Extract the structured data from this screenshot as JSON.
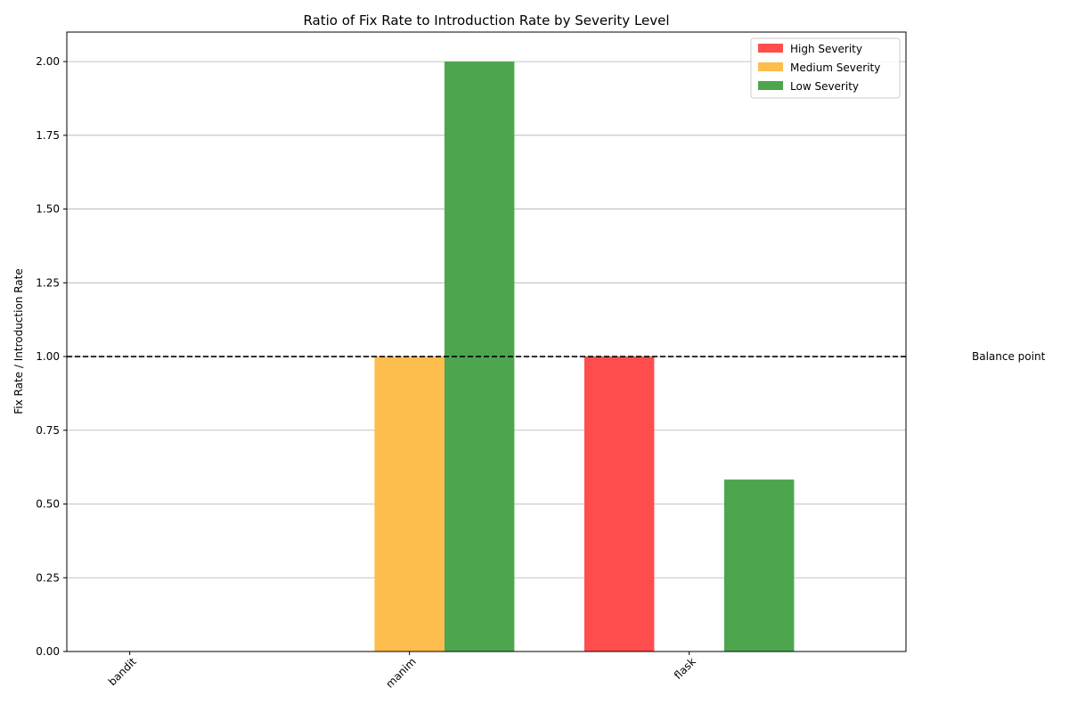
{
  "chart_data": {
    "type": "bar",
    "title": "Ratio of Fix Rate to Introduction Rate by Severity Level",
    "xlabel": "",
    "ylabel": "Fix Rate / Introduction Rate",
    "categories": [
      "bandit",
      "manim",
      "flask"
    ],
    "series": [
      {
        "name": "High Severity",
        "color": "#ff4d4d",
        "values": [
          0,
          0,
          1.0
        ]
      },
      {
        "name": "Medium Severity",
        "color": "#fdbe4d",
        "values": [
          0,
          1.0,
          0
        ]
      },
      {
        "name": "Low Severity",
        "color": "#4da64d",
        "values": [
          0,
          2.0,
          0.583
        ]
      }
    ],
    "ylim": [
      0,
      2.1
    ],
    "yticks": [
      "0.00",
      "0.25",
      "0.50",
      "0.75",
      "1.00",
      "1.25",
      "1.50",
      "1.75",
      "2.00"
    ],
    "ytick_values": [
      0,
      0.25,
      0.5,
      0.75,
      1.0,
      1.25,
      1.5,
      1.75,
      2.0
    ],
    "grid": "y",
    "legend_position": "top-right",
    "reference_line": {
      "value": 1.0,
      "style": "dashed",
      "color": "#000000",
      "label": "Balance point"
    }
  }
}
